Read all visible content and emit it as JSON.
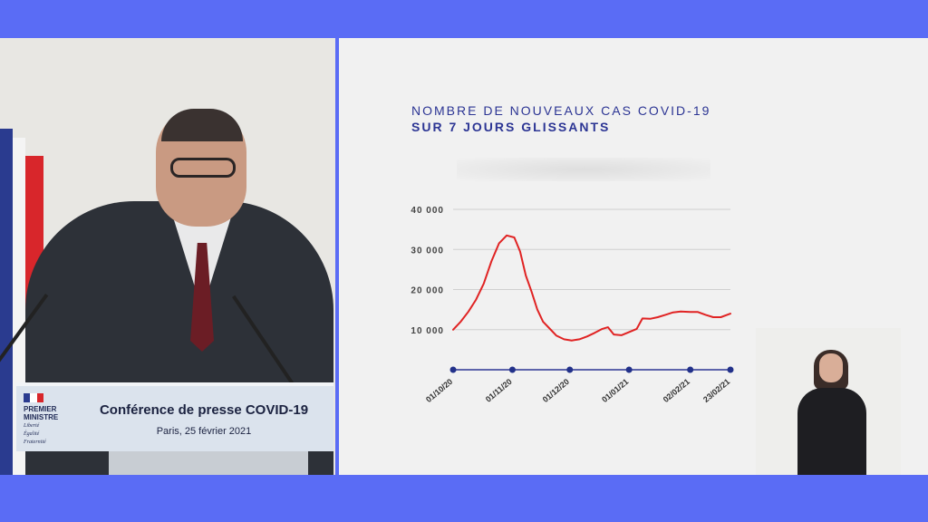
{
  "podium": {
    "logo_line1": "PREMIER",
    "logo_line2": "MINISTRE",
    "motto1": "Liberté",
    "motto2": "Égalité",
    "motto3": "Fraternité",
    "title": "Conférence de presse COVID-19",
    "subtitle": "Paris, 25 février 2021"
  },
  "colors": {
    "frame": "#5a6cf5",
    "title": "#2c3594",
    "line": "#e02323",
    "axis": "#2c3594"
  },
  "chart_data": {
    "type": "line",
    "title": "NOMBRE DE NOUVEAUX CAS COVID-19",
    "subtitle": "SUR 7 JOURS GLISSANTS",
    "xlabel": "",
    "ylabel": "",
    "ylim": [
      0,
      40000
    ],
    "yticks": [
      10000,
      20000,
      30000,
      40000
    ],
    "ytick_labels": [
      "10 000",
      "20 000",
      "30 000",
      "40 000"
    ],
    "grid": true,
    "xlim": [
      "2020-10-01",
      "2021-02-23"
    ],
    "xticks": [
      "2020-10-01",
      "2020-11-01",
      "2020-12-01",
      "2021-01-01",
      "2021-02-02",
      "2021-02-23"
    ],
    "xtick_labels": [
      "01/10/20",
      "01/11/20",
      "01/12/20",
      "01/01/21",
      "02/02/21",
      "23/02/21"
    ],
    "series": [
      {
        "points": [
          [
            "2020-10-01",
            10000
          ],
          [
            "2020-10-05",
            12000
          ],
          [
            "2020-10-09",
            14500
          ],
          [
            "2020-10-13",
            17500
          ],
          [
            "2020-10-17",
            21500
          ],
          [
            "2020-10-21",
            27000
          ],
          [
            "2020-10-25",
            31500
          ],
          [
            "2020-10-29",
            33500
          ],
          [
            "2020-11-02",
            33000
          ],
          [
            "2020-11-05",
            29500
          ],
          [
            "2020-11-08",
            23500
          ],
          [
            "2020-11-11",
            19500
          ],
          [
            "2020-11-14",
            15000
          ],
          [
            "2020-11-17",
            12000
          ],
          [
            "2020-11-20",
            10500
          ],
          [
            "2020-11-24",
            8500
          ],
          [
            "2020-11-28",
            7600
          ],
          [
            "2020-12-02",
            7300
          ],
          [
            "2020-12-06",
            7600
          ],
          [
            "2020-12-10",
            8300
          ],
          [
            "2020-12-14",
            9200
          ],
          [
            "2020-12-18",
            10200
          ],
          [
            "2020-12-21",
            10600
          ],
          [
            "2020-12-24",
            8800
          ],
          [
            "2020-12-28",
            8600
          ],
          [
            "2021-01-01",
            9400
          ],
          [
            "2021-01-05",
            10200
          ],
          [
            "2021-01-08",
            12800
          ],
          [
            "2021-01-12",
            12700
          ],
          [
            "2021-01-16",
            13100
          ],
          [
            "2021-01-20",
            13700
          ],
          [
            "2021-01-24",
            14300
          ],
          [
            "2021-01-28",
            14500
          ],
          [
            "2021-02-02",
            14400
          ],
          [
            "2021-02-06",
            14400
          ],
          [
            "2021-02-10",
            13700
          ],
          [
            "2021-02-14",
            13100
          ],
          [
            "2021-02-18",
            13100
          ],
          [
            "2021-02-23",
            14000
          ]
        ]
      }
    ]
  }
}
